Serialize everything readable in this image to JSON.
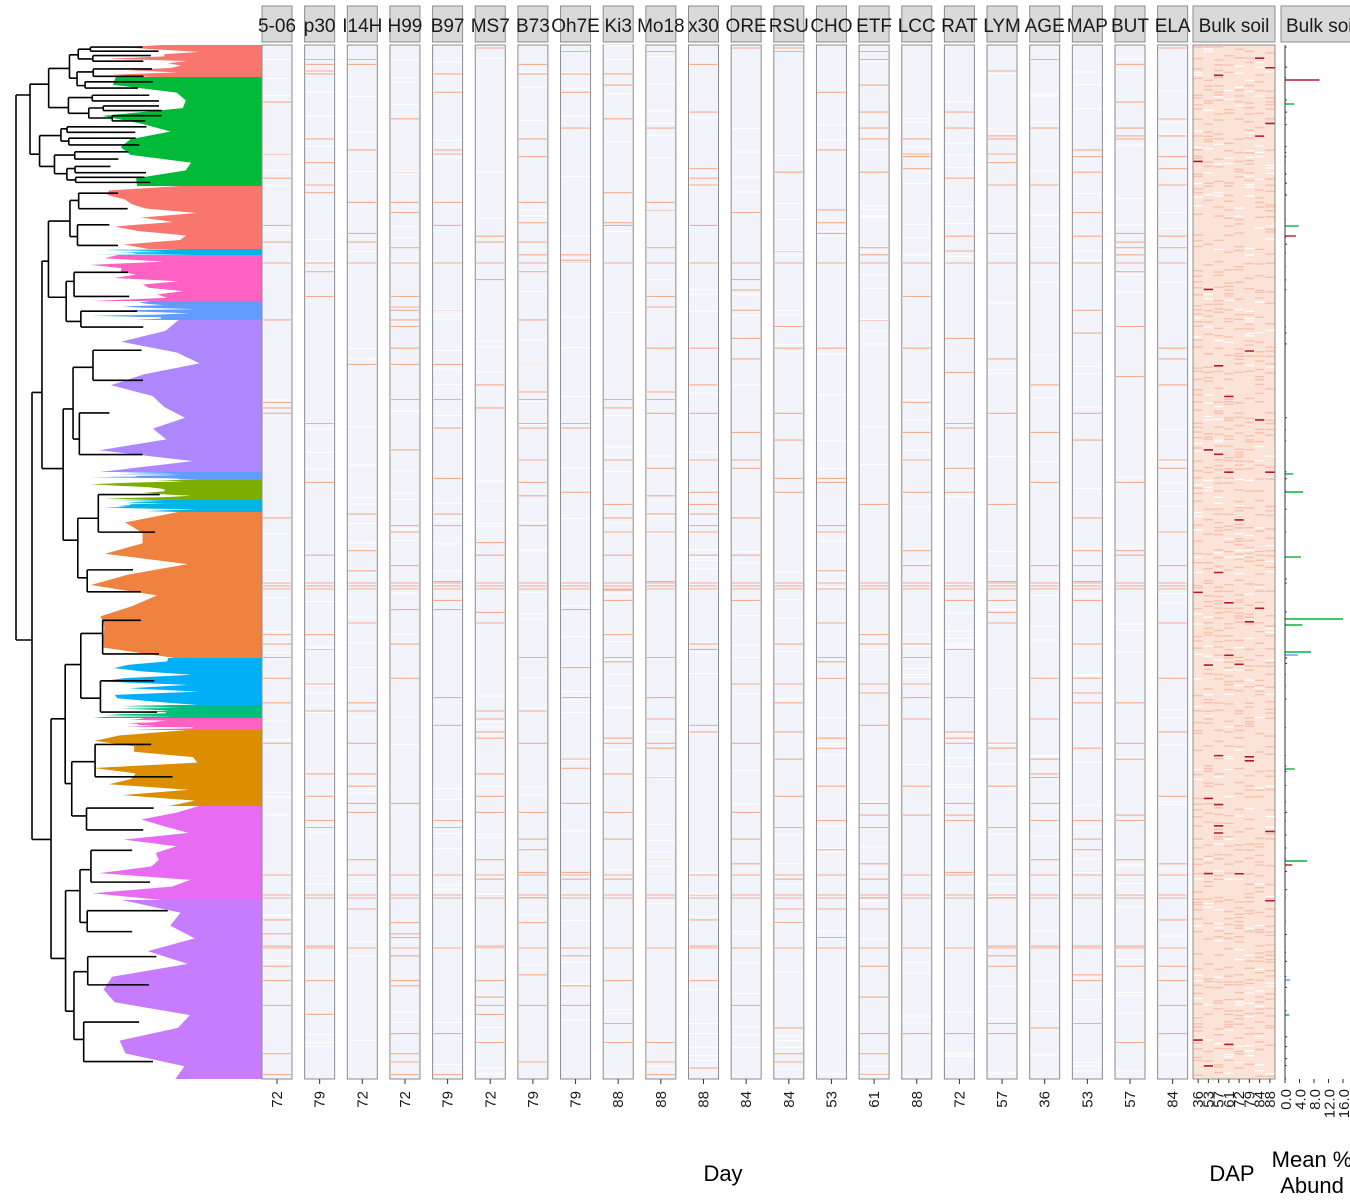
{
  "chart_data": {
    "type": "heatmap",
    "description_facets": "Per-genotype heatmap panels of OTU abundance ordered by phylogenetic tree",
    "panels": [
      {
        "label": "5-06",
        "day": "72"
      },
      {
        "label": "p30",
        "day": "79"
      },
      {
        "label": "I14H",
        "day": "72"
      },
      {
        "label": "H99",
        "day": "72"
      },
      {
        "label": "B97",
        "day": "79"
      },
      {
        "label": "MS7",
        "day": "72"
      },
      {
        "label": "B73",
        "day": "79"
      },
      {
        "label": "Oh7E",
        "day": "79"
      },
      {
        "label": "Ki3",
        "day": "88"
      },
      {
        "label": "Mo18",
        "day": "88"
      },
      {
        "label": "x30",
        "day": "88"
      },
      {
        "label": "ORE",
        "day": "84"
      },
      {
        "label": "RSU",
        "day": "84"
      },
      {
        "label": "CHO",
        "day": "53"
      },
      {
        "label": "ETF",
        "day": "61"
      },
      {
        "label": "LCC",
        "day": "88"
      },
      {
        "label": "RAT",
        "day": "72"
      },
      {
        "label": "LYM",
        "day": "57"
      },
      {
        "label": "AGE",
        "day": "36"
      },
      {
        "label": "MAP",
        "day": "53"
      },
      {
        "label": "BUT",
        "day": "57"
      },
      {
        "label": "ELA",
        "day": "84"
      }
    ],
    "bulk_panel": {
      "label": "Bulk soil",
      "ticks": [
        "36",
        "53",
        "57",
        "61",
        "72",
        "79",
        "84",
        "88"
      ]
    },
    "bar_panel": {
      "label": "Bulk soil",
      "ticks": [
        "0.0",
        "4.0",
        "8.0",
        "12.0",
        "16.0"
      ],
      "xlim": [
        0,
        16
      ]
    },
    "xlabel": "Day",
    "bulk_xlabel": "DAP",
    "bar_xlabel_line1": "Mean %",
    "bar_xlabel_line2": "Abund",
    "clade_colors": [
      "#F8766D",
      "#00BA38",
      "#00B4E6",
      "#FF61C3",
      "#AE87FF",
      "#7CAE00",
      "#F0823F",
      "#00B0F6",
      "#00BF7D",
      "#E76BF3",
      "#DB8E00",
      "#C77CFF",
      "#619CFF"
    ],
    "heat_low_color": "#F3F3FC",
    "heat_high_color": "#B2182B"
  }
}
